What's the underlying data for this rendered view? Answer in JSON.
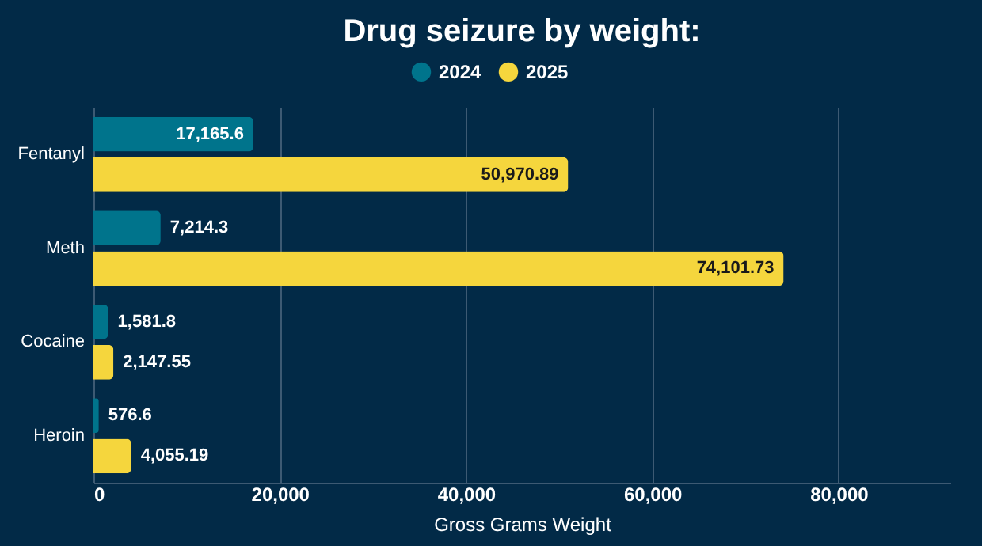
{
  "chart_data": {
    "type": "bar",
    "orientation": "horizontal",
    "title": "Drug seizure by weight:",
    "xlabel": "Gross Grams Weight",
    "categories": [
      "Fentanyl",
      "Meth",
      "Cocaine",
      "Heroin"
    ],
    "series": [
      {
        "name": "2024",
        "color": "#00748c",
        "values": [
          17165.6,
          7214.3,
          1581.8,
          576.6
        ],
        "value_labels": [
          "17,165.6",
          "7,214.3",
          "1,581.8",
          "576.6"
        ]
      },
      {
        "name": "2025",
        "color": "#f5d63d",
        "values": [
          50970.89,
          74101.73,
          2147.55,
          4055.19
        ],
        "value_labels": [
          "50,970.89",
          "74,101.73",
          "2,147.55",
          "4,055.19"
        ]
      }
    ],
    "xlim": [
      0,
      92000
    ],
    "xticks": [
      {
        "value": 0,
        "label": "0"
      },
      {
        "value": 20000,
        "label": "20,000"
      },
      {
        "value": 40000,
        "label": "40,000"
      },
      {
        "value": 60000,
        "label": "60,000"
      },
      {
        "value": 80000,
        "label": "80,000"
      }
    ],
    "grid": "x",
    "legend": "top"
  }
}
